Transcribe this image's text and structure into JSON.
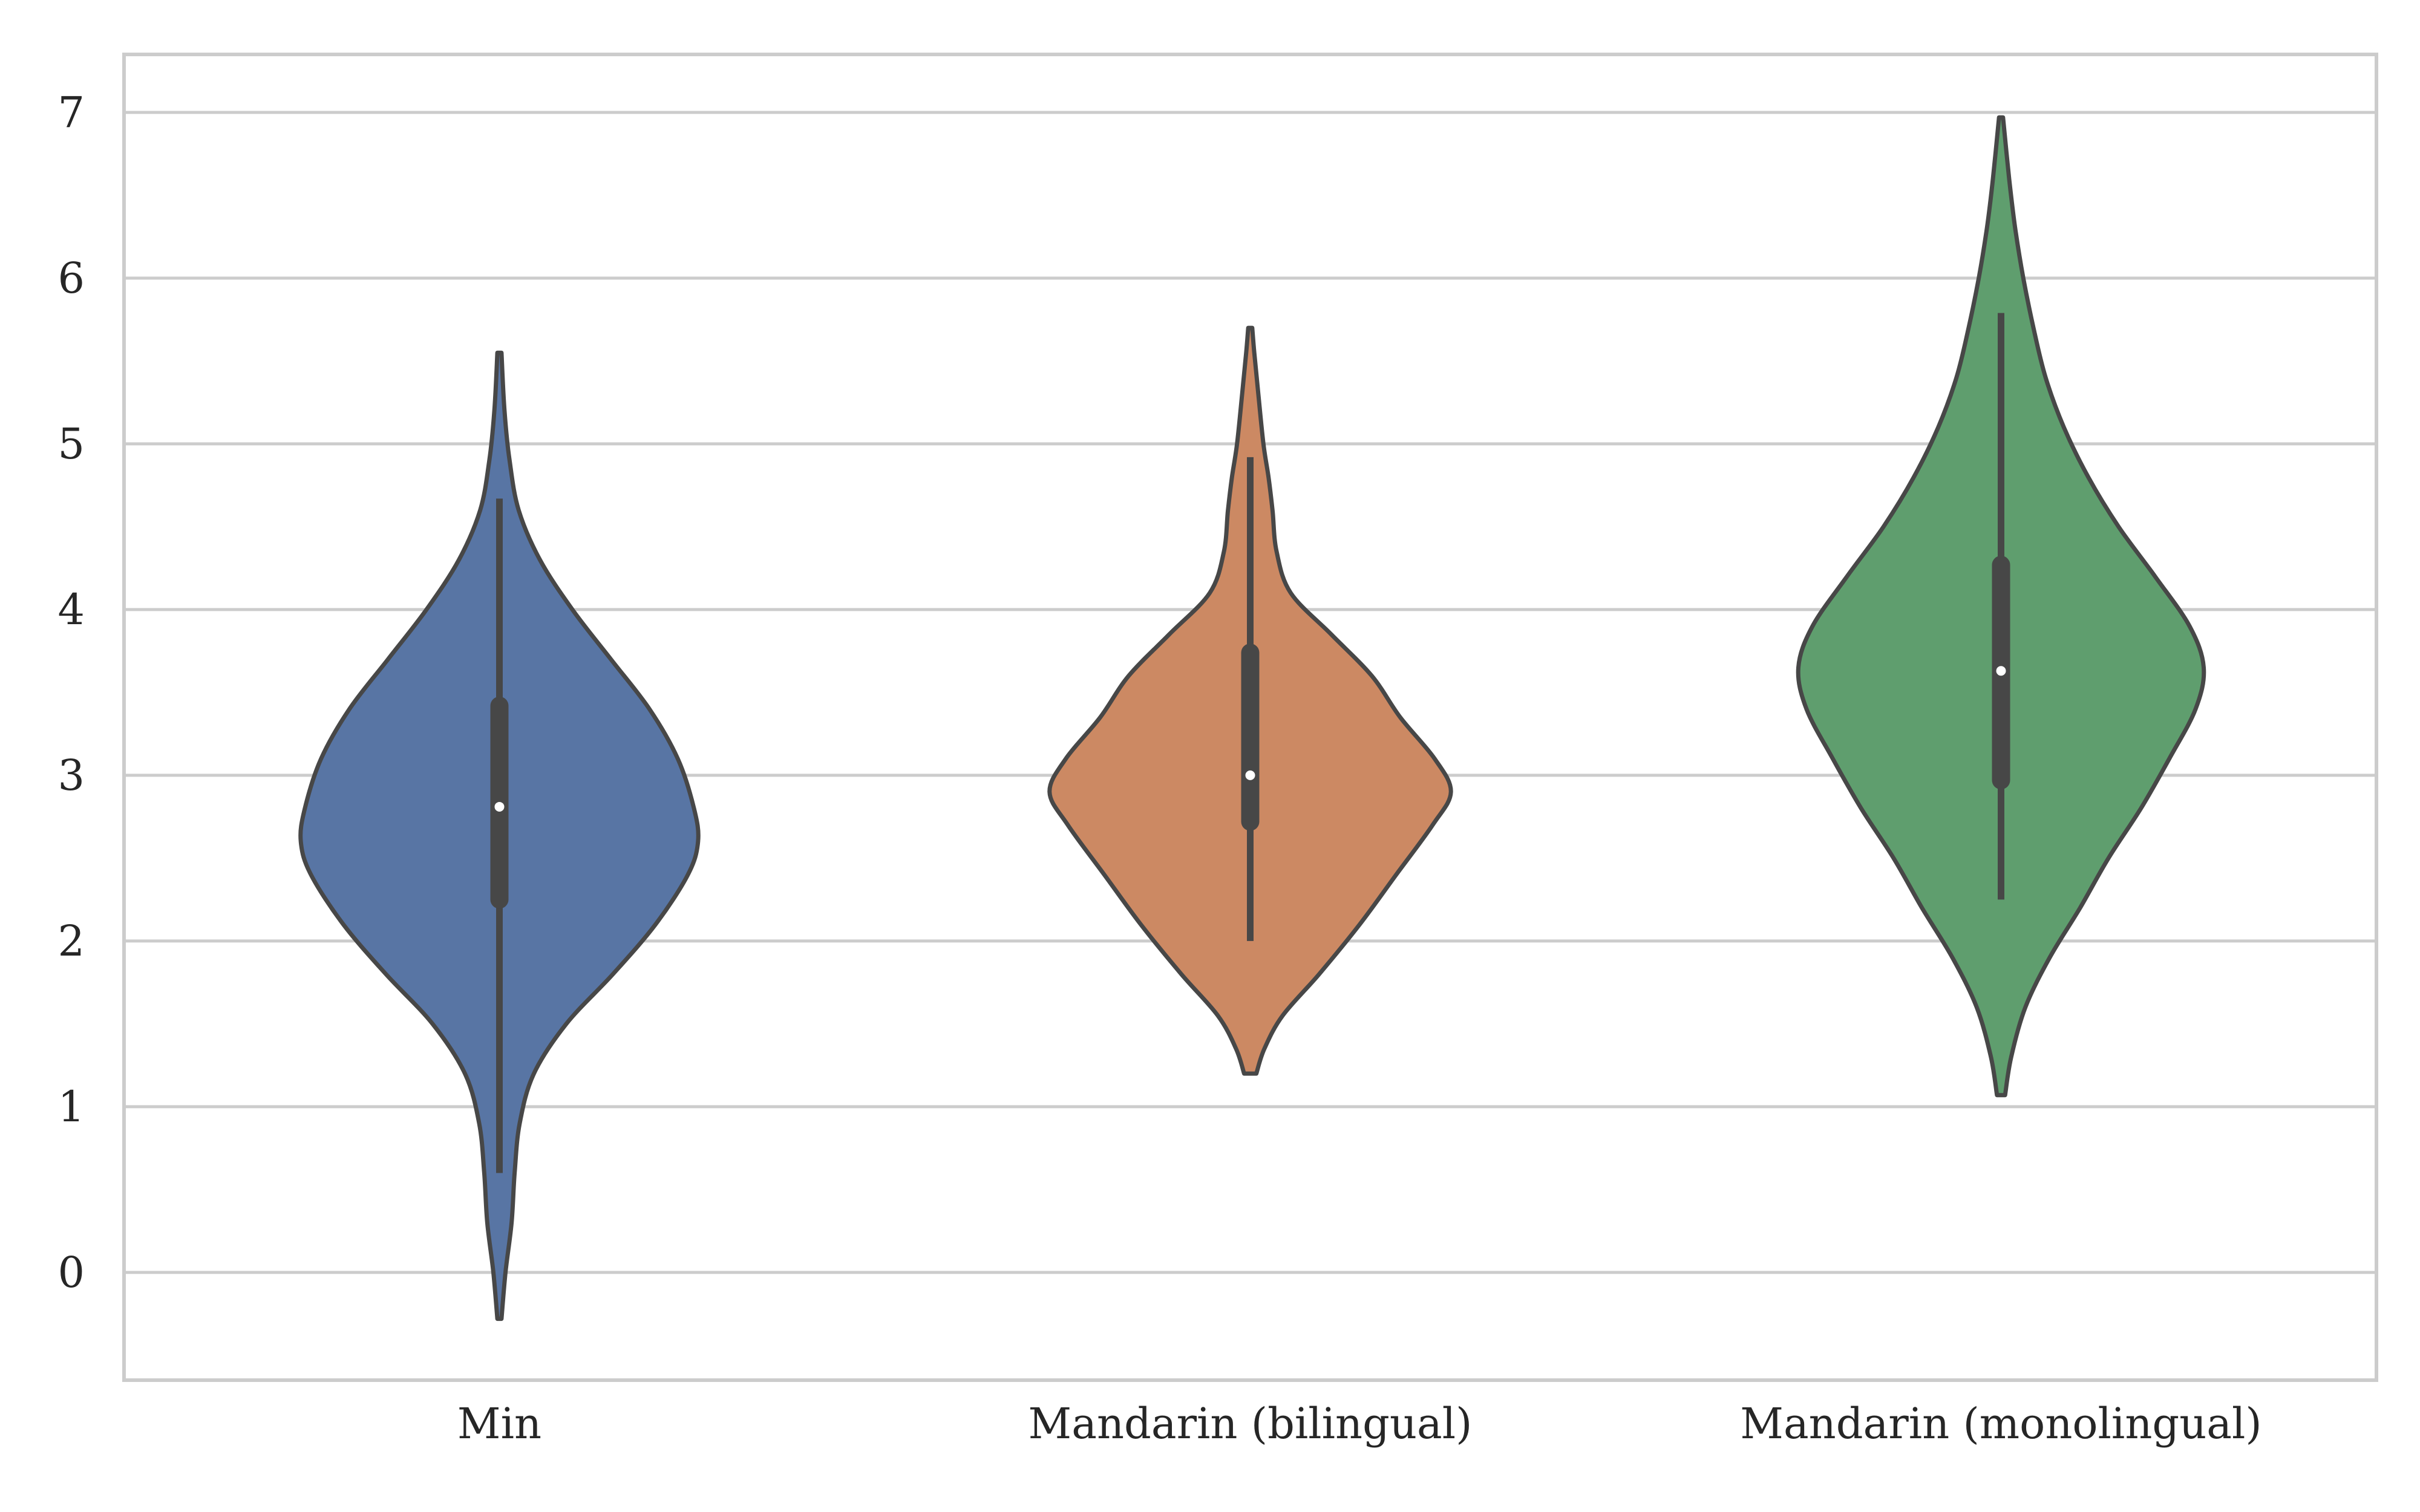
{
  "chart_data": {
    "type": "violin",
    "title": "",
    "xlabel": "",
    "ylabel": "",
    "ylim": [
      -0.65,
      7.35
    ],
    "yticks": [
      0,
      1,
      2,
      3,
      4,
      5,
      6,
      7
    ],
    "ytick_labels": [
      "0",
      "1",
      "2",
      "3",
      "4",
      "5",
      "6",
      "7"
    ],
    "grid": "horizontal",
    "legend": "none",
    "categories": [
      "Min",
      "Mandarin (bilingual)",
      "Mandarin (monolingual)"
    ],
    "violins": [
      {
        "category": "Min",
        "color": "#5875a4",
        "density_min": -0.28,
        "density_max": 5.55,
        "whisker_low": 0.6,
        "q1": 2.25,
        "median": 2.81,
        "q3": 3.42,
        "whisker_high": 4.67,
        "profile": [
          [
            -0.28,
            0.01
          ],
          [
            0.0,
            0.03
          ],
          [
            0.3,
            0.06
          ],
          [
            0.6,
            0.075
          ],
          [
            0.9,
            0.1
          ],
          [
            1.2,
            0.17
          ],
          [
            1.5,
            0.33
          ],
          [
            1.8,
            0.56
          ],
          [
            2.1,
            0.77
          ],
          [
            2.4,
            0.93
          ],
          [
            2.6,
            0.98
          ],
          [
            2.8,
            0.96
          ],
          [
            3.1,
            0.88
          ],
          [
            3.4,
            0.74
          ],
          [
            3.7,
            0.55
          ],
          [
            4.0,
            0.36
          ],
          [
            4.3,
            0.2
          ],
          [
            4.6,
            0.095
          ],
          [
            4.9,
            0.05
          ],
          [
            5.2,
            0.025
          ],
          [
            5.55,
            0.01
          ]
        ]
      },
      {
        "category": "Mandarin (bilingual)",
        "color": "#cc8963",
        "density_min": 1.2,
        "density_max": 5.7,
        "whisker_low": 2.0,
        "q1": 2.72,
        "median": 3.0,
        "q3": 3.74,
        "whisker_high": 4.92,
        "profile": [
          [
            1.2,
            0.03
          ],
          [
            1.35,
            0.07
          ],
          [
            1.55,
            0.16
          ],
          [
            1.8,
            0.34
          ],
          [
            2.1,
            0.54
          ],
          [
            2.4,
            0.72
          ],
          [
            2.7,
            0.9
          ],
          [
            2.9,
            0.99
          ],
          [
            3.1,
            0.91
          ],
          [
            3.35,
            0.74
          ],
          [
            3.6,
            0.6
          ],
          [
            3.85,
            0.4
          ],
          [
            4.1,
            0.2
          ],
          [
            4.35,
            0.13
          ],
          [
            4.6,
            0.11
          ],
          [
            4.8,
            0.09
          ],
          [
            5.0,
            0.065
          ],
          [
            5.3,
            0.04
          ],
          [
            5.55,
            0.02
          ],
          [
            5.7,
            0.01
          ]
        ]
      },
      {
        "category": "Mandarin (monolingual)",
        "color": "#5f9e6e",
        "density_min": 1.07,
        "density_max": 6.97,
        "whisker_low": 2.25,
        "q1": 2.97,
        "median": 3.63,
        "q3": 4.27,
        "whisker_high": 5.79,
        "profile": [
          [
            1.07,
            0.02
          ],
          [
            1.3,
            0.05
          ],
          [
            1.6,
            0.12
          ],
          [
            1.9,
            0.24
          ],
          [
            2.2,
            0.39
          ],
          [
            2.5,
            0.53
          ],
          [
            2.8,
            0.69
          ],
          [
            3.1,
            0.83
          ],
          [
            3.4,
            0.96
          ],
          [
            3.65,
            1.0
          ],
          [
            3.9,
            0.93
          ],
          [
            4.2,
            0.76
          ],
          [
            4.5,
            0.58
          ],
          [
            4.8,
            0.43
          ],
          [
            5.1,
            0.31
          ],
          [
            5.4,
            0.22
          ],
          [
            5.7,
            0.16
          ],
          [
            6.0,
            0.11
          ],
          [
            6.3,
            0.07
          ],
          [
            6.6,
            0.04
          ],
          [
            6.97,
            0.01
          ]
        ]
      }
    ]
  }
}
